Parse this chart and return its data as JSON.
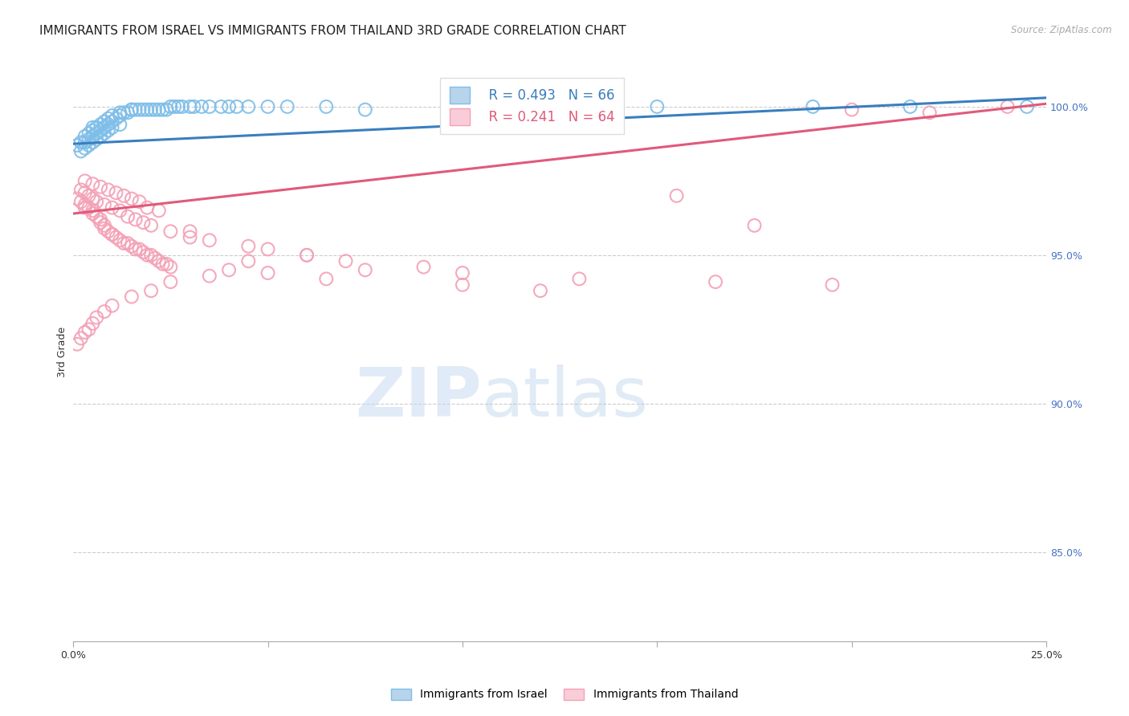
{
  "title": "IMMIGRANTS FROM ISRAEL VS IMMIGRANTS FROM THAILAND 3RD GRADE CORRELATION CHART",
  "source": "Source: ZipAtlas.com",
  "ylabel": "3rd Grade",
  "x_min": 0.0,
  "x_max": 0.25,
  "y_min": 0.82,
  "y_max": 1.015,
  "x_ticks": [
    0.0,
    0.05,
    0.1,
    0.15,
    0.2,
    0.25
  ],
  "x_tick_labels": [
    "0.0%",
    "",
    "",
    "",
    "",
    "25.0%"
  ],
  "y_ticks_right": [
    0.85,
    0.9,
    0.95,
    1.0
  ],
  "y_tick_labels_right": [
    "85.0%",
    "90.0%",
    "95.0%",
    "100.0%"
  ],
  "legend_R_blue": "R = 0.493",
  "legend_N_blue": "N = 66",
  "legend_R_pink": "R = 0.241",
  "legend_N_pink": "N = 64",
  "blue_color": "#7fbee8",
  "pink_color": "#f4a0b5",
  "blue_line_color": "#3a7ebf",
  "pink_line_color": "#e05a7a",
  "watermark_zip": "ZIP",
  "watermark_atlas": "atlas",
  "blue_line_x": [
    0.0,
    0.25
  ],
  "blue_line_y": [
    0.9875,
    1.003
  ],
  "pink_line_x": [
    0.0,
    0.25
  ],
  "pink_line_y": [
    0.964,
    1.001
  ],
  "legend_bottom_blue": "Immigrants from Israel",
  "legend_bottom_pink": "Immigrants from Thailand",
  "title_fontsize": 11,
  "axis_label_fontsize": 9,
  "tick_fontsize": 9,
  "legend_fontsize": 12,
  "blue_scatter_x": [
    0.001,
    0.002,
    0.003,
    0.003,
    0.004,
    0.004,
    0.005,
    0.005,
    0.005,
    0.006,
    0.006,
    0.007,
    0.007,
    0.008,
    0.008,
    0.009,
    0.009,
    0.01,
    0.01,
    0.011,
    0.012,
    0.012,
    0.013,
    0.014,
    0.015,
    0.015,
    0.016,
    0.017,
    0.018,
    0.019,
    0.02,
    0.021,
    0.022,
    0.023,
    0.024,
    0.025,
    0.026,
    0.027,
    0.028,
    0.03,
    0.031,
    0.033,
    0.035,
    0.038,
    0.04,
    0.042,
    0.045,
    0.05,
    0.055,
    0.065,
    0.002,
    0.003,
    0.004,
    0.005,
    0.006,
    0.007,
    0.008,
    0.009,
    0.01,
    0.012,
    0.075,
    0.11,
    0.15,
    0.19,
    0.215,
    0.245
  ],
  "blue_scatter_y": [
    0.987,
    0.988,
    0.988,
    0.99,
    0.989,
    0.991,
    0.99,
    0.992,
    0.993,
    0.991,
    0.993,
    0.992,
    0.994,
    0.993,
    0.995,
    0.994,
    0.996,
    0.995,
    0.997,
    0.996,
    0.997,
    0.998,
    0.998,
    0.998,
    0.999,
    0.999,
    0.999,
    0.999,
    0.999,
    0.999,
    0.999,
    0.999,
    0.999,
    0.999,
    0.999,
    1.0,
    1.0,
    1.0,
    1.0,
    1.0,
    1.0,
    1.0,
    1.0,
    1.0,
    1.0,
    1.0,
    1.0,
    1.0,
    1.0,
    1.0,
    0.985,
    0.986,
    0.987,
    0.988,
    0.989,
    0.99,
    0.991,
    0.992,
    0.993,
    0.994,
    0.999,
    0.999,
    1.0,
    1.0,
    1.0,
    1.0
  ],
  "pink_scatter_x": [
    0.001,
    0.002,
    0.003,
    0.003,
    0.004,
    0.005,
    0.005,
    0.006,
    0.007,
    0.007,
    0.008,
    0.008,
    0.009,
    0.01,
    0.01,
    0.011,
    0.012,
    0.013,
    0.014,
    0.015,
    0.016,
    0.017,
    0.018,
    0.019,
    0.02,
    0.021,
    0.022,
    0.023,
    0.024,
    0.025,
    0.002,
    0.003,
    0.004,
    0.005,
    0.006,
    0.008,
    0.01,
    0.012,
    0.014,
    0.016,
    0.018,
    0.02,
    0.025,
    0.03,
    0.035,
    0.045,
    0.05,
    0.06,
    0.07,
    0.09,
    0.003,
    0.005,
    0.007,
    0.009,
    0.011,
    0.013,
    0.015,
    0.017,
    0.019,
    0.022,
    0.1,
    0.13,
    0.165,
    0.195
  ],
  "pink_scatter_y": [
    0.969,
    0.968,
    0.967,
    0.966,
    0.966,
    0.965,
    0.964,
    0.963,
    0.962,
    0.961,
    0.96,
    0.959,
    0.958,
    0.957,
    0.957,
    0.956,
    0.955,
    0.954,
    0.954,
    0.953,
    0.952,
    0.952,
    0.951,
    0.95,
    0.95,
    0.949,
    0.948,
    0.947,
    0.947,
    0.946,
    0.972,
    0.971,
    0.97,
    0.969,
    0.968,
    0.967,
    0.966,
    0.965,
    0.963,
    0.962,
    0.961,
    0.96,
    0.958,
    0.956,
    0.955,
    0.953,
    0.952,
    0.95,
    0.948,
    0.946,
    0.975,
    0.974,
    0.973,
    0.972,
    0.971,
    0.97,
    0.969,
    0.968,
    0.966,
    0.965,
    0.944,
    0.942,
    0.941,
    0.94
  ],
  "pink_scatter_outliers_x": [
    0.06,
    0.075,
    0.1,
    0.12,
    0.065,
    0.05,
    0.04,
    0.035,
    0.025,
    0.02,
    0.015,
    0.01,
    0.008,
    0.006,
    0.005,
    0.004,
    0.003,
    0.002,
    0.001,
    0.175,
    0.22,
    0.24,
    0.2,
    0.155,
    0.03,
    0.045
  ],
  "pink_scatter_outliers_y": [
    0.95,
    0.945,
    0.94,
    0.938,
    0.942,
    0.944,
    0.945,
    0.943,
    0.941,
    0.938,
    0.936,
    0.933,
    0.931,
    0.929,
    0.927,
    0.925,
    0.924,
    0.922,
    0.92,
    0.96,
    0.998,
    1.0,
    0.999,
    0.97,
    0.958,
    0.948
  ]
}
